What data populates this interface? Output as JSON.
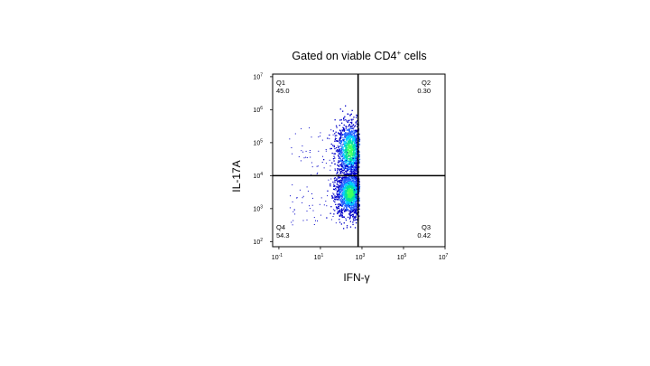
{
  "slide": {
    "title_main": "Gated on viable CD4",
    "title_sup": "+",
    "title_tail": " cells"
  },
  "chart_data": {
    "type": "scatter",
    "plot_kind": "flow cytometry density dot plot (quadrant gate)",
    "title": "Gated on viable CD4+ cells",
    "xlabel": "IFN-γ",
    "ylabel": "IL-17A",
    "x_scale": "log10",
    "y_scale": "log10",
    "xlim": [
      0.05,
      10000000
    ],
    "ylim": [
      70,
      12000000
    ],
    "x_ticks": [
      {
        "value": 0.1,
        "base": "10",
        "exp": "-1"
      },
      {
        "value": 10,
        "base": "10",
        "exp": "1"
      },
      {
        "value": 1000,
        "base": "10",
        "exp": "3"
      },
      {
        "value": 100000,
        "base": "10",
        "exp": "5"
      },
      {
        "value": 10000000,
        "base": "10",
        "exp": "7"
      }
    ],
    "y_ticks": [
      {
        "value": 100,
        "base": "10",
        "exp": "2"
      },
      {
        "value": 1000,
        "base": "10",
        "exp": "3"
      },
      {
        "value": 10000,
        "base": "10",
        "exp": "4"
      },
      {
        "value": 100000,
        "base": "10",
        "exp": "5"
      },
      {
        "value": 1000000,
        "base": "10",
        "exp": "6"
      },
      {
        "value": 10000000,
        "base": "10",
        "exp": "7"
      }
    ],
    "gate": {
      "x": 650,
      "y": 10000
    },
    "quadrants": [
      {
        "id": "Q1",
        "value": "45.0",
        "corner": "top-left"
      },
      {
        "id": "Q2",
        "value": "0.30",
        "corner": "top-right"
      },
      {
        "id": "Q3",
        "value": "0.42",
        "corner": "bottom-right"
      },
      {
        "id": "Q4",
        "value": "54.3",
        "corner": "bottom-left"
      }
    ],
    "populations": [
      {
        "name": "upper",
        "x_center": 250,
        "y_center": 60000,
        "x_spread_log": 0.35,
        "y_spread_log": 0.45,
        "weight": 0.45
      },
      {
        "name": "lower",
        "x_center": 250,
        "y_center": 3000,
        "x_spread_log": 0.35,
        "y_spread_log": 0.35,
        "weight": 0.55
      }
    ],
    "colors": [
      "#0000c8",
      "#2060ff",
      "#00c8ff",
      "#00e0a0",
      "#40ff60"
    ],
    "grid": false
  }
}
